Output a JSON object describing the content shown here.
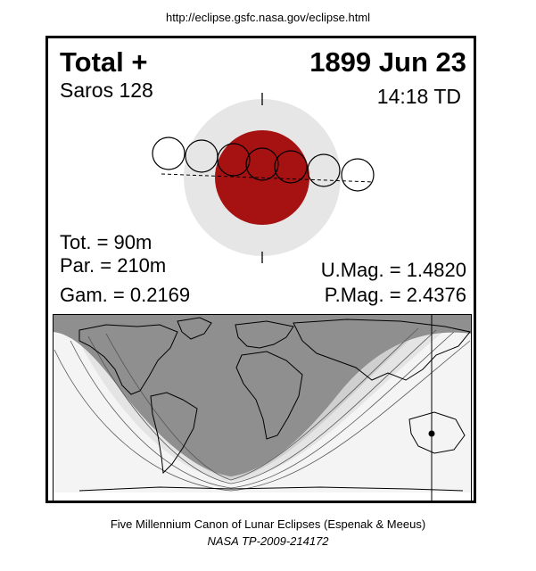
{
  "header": {
    "url": "http://eclipse.gsfc.nasa.gov/eclipse.html"
  },
  "eclipse": {
    "type": "Total  +",
    "saros": "Saros 128",
    "date": "1899 Jun 23",
    "td_time": "14:18 TD"
  },
  "stats": {
    "totality": "Tot. =  90m",
    "partial": "Par. = 210m",
    "gamma": "Gam. = 0.2169",
    "umbral_magnitude": "U.Mag. = 1.4820",
    "penumbral_magnitude": "P.Mag. = 2.4376"
  },
  "footer": {
    "canon": "Five Millennium Canon of Lunar Eclipses (Espenak & Meeus)",
    "reference": "NASA TP-2009-214172"
  },
  "colors": {
    "umbra": "#a61212",
    "penumbra": "#e6e6e6",
    "map_night": "#8f8f8f",
    "map_band_1": "#a8a8a8",
    "map_band_2": "#c2c2c2",
    "map_band_3": "#dadada",
    "map_band_4": "#ececec"
  }
}
